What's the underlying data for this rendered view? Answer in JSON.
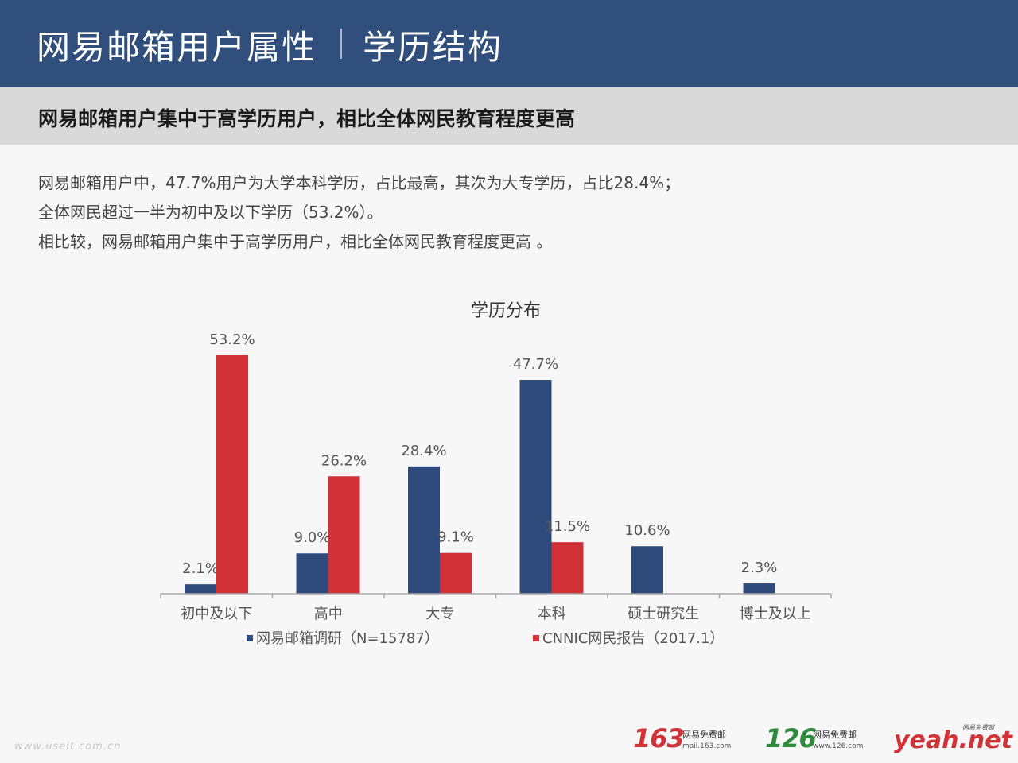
{
  "header": {
    "title": "网易邮箱用户属性",
    "subtitle": "学历结构"
  },
  "summary": {
    "headline": "网易邮箱用户集中于高学历用户，相比全体网民教育程度更高",
    "lines": [
      "网易邮箱用户中，47.7%用户为大学本科学历，占比最高，其次为大专学历，占比28.4%；",
      "全体网民超过一半为初中及以下学历（53.2%）。",
      "相比较，网易邮箱用户集中于高学历用户，相比全体网民教育程度更高 。"
    ]
  },
  "chart_data": {
    "type": "bar",
    "title": "学历分布",
    "categories": [
      "初中及以下",
      "高中",
      "大专",
      "本科",
      "硕士研究生",
      "博士及以上"
    ],
    "series": [
      {
        "name": "网易邮箱调研（N=15787）",
        "color": "#2f4b7c",
        "values": [
          2.1,
          9.0,
          28.4,
          47.7,
          10.6,
          2.3
        ],
        "labels": [
          "2.1%",
          "9.0%",
          "28.4%",
          "47.7%",
          "10.6%",
          "2.3%"
        ]
      },
      {
        "name": "CNNIC网民报告（2017.1）",
        "color": "#d03238",
        "values": [
          53.2,
          26.2,
          9.1,
          11.5,
          null,
          null
        ],
        "labels": [
          "53.2%",
          "26.2%",
          "9.1%",
          "11.5%",
          "",
          ""
        ]
      }
    ],
    "ylim": [
      0,
      53.2
    ],
    "legend_position": "bottom",
    "grid": false
  },
  "footer": {
    "watermark": "www.useit.com.cn",
    "logos": [
      {
        "number": "163",
        "name": "网易免费邮",
        "domain": "mail.163.com",
        "color": "#d03238"
      },
      {
        "number": "126",
        "name": "网易免费邮",
        "domain": "www.126.com",
        "color": "#2e8b3c"
      },
      {
        "brand": "yeah.net",
        "tagline": "网易免费邮",
        "color": "#d03238"
      }
    ]
  }
}
